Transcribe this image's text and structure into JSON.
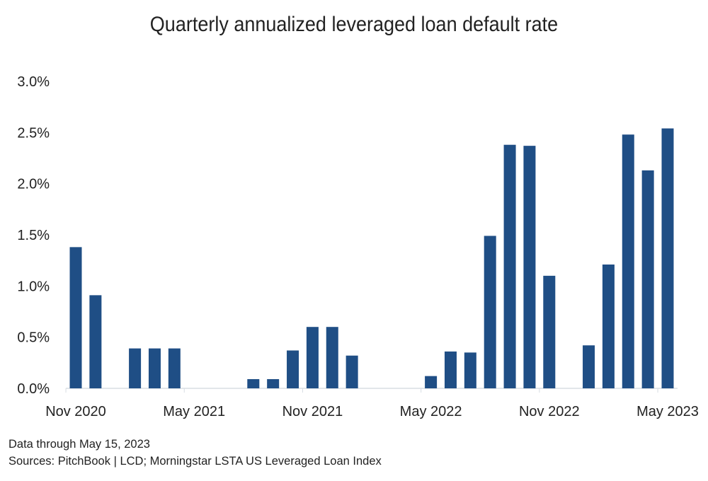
{
  "chart_data": {
    "type": "bar",
    "title": "Quarterly annualized leveraged loan default rate",
    "xlabel": "",
    "ylabel": "",
    "categories": [
      "Nov 2020",
      "Dec 2020",
      "Jan 2021",
      "Feb 2021",
      "Mar 2021",
      "Apr 2021",
      "May 2021",
      "Jun 2021",
      "Jul 2021",
      "Aug 2021",
      "Sep 2021",
      "Oct 2021",
      "Nov 2021",
      "Dec 2021",
      "Jan 2022",
      "Feb 2022",
      "Mar 2022",
      "Apr 2022",
      "May 2022",
      "Jun 2022",
      "Jul 2022",
      "Aug 2022",
      "Sep 2022",
      "Oct 2022",
      "Nov 2022",
      "Dec 2022",
      "Jan 2023",
      "Feb 2023",
      "Mar 2023",
      "Apr 2023",
      "May 2023"
    ],
    "values": [
      1.38,
      0.91,
      null,
      0.39,
      0.39,
      0.39,
      null,
      null,
      null,
      0.09,
      0.09,
      0.37,
      0.6,
      0.6,
      0.32,
      null,
      null,
      null,
      0.12,
      0.36,
      0.35,
      1.49,
      2.38,
      2.37,
      1.1,
      null,
      0.42,
      1.21,
      2.48,
      2.13,
      2.54
    ],
    "x_tick_labels": [
      "Nov 2020",
      "May 2021",
      "Nov 2021",
      "May 2022",
      "Nov 2022",
      "May 2023"
    ],
    "y_tick_labels": [
      "0.0%",
      "0.5%",
      "1.0%",
      "1.5%",
      "2.0%",
      "2.5%",
      "3.0%"
    ],
    "ylim": [
      0,
      3.0
    ],
    "grid": false,
    "bar_color": "#1f4e85"
  },
  "footer": {
    "data_note": "Data through May 15, 2023",
    "sources": "Sources: PitchBook | LCD; Morningstar LSTA US Leveraged Loan Index"
  }
}
